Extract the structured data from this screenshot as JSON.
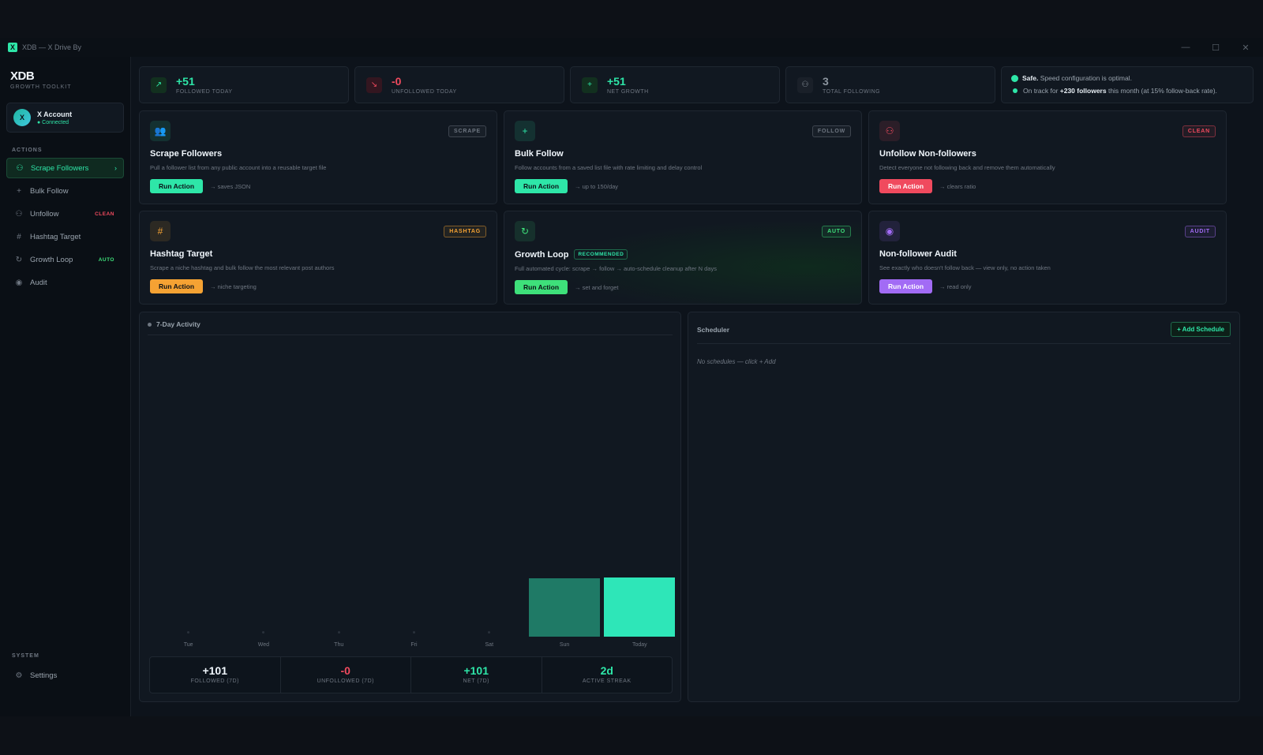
{
  "window": {
    "title": "XDB — X Drive By"
  },
  "brand": {
    "name": "XDB",
    "subtitle": "GROWTH TOOLKIT"
  },
  "account": {
    "avatar": "X",
    "name": "X Account",
    "status": "● Connected"
  },
  "sidebar": {
    "actions_label": "ACTIONS",
    "items": [
      {
        "label": "Scrape Followers",
        "icon": "users-icon",
        "tag": ""
      },
      {
        "label": "Bulk Follow",
        "icon": "plus-icon",
        "tag": ""
      },
      {
        "label": "Unfollow",
        "icon": "user-minus-icon",
        "tag": "CLEAN"
      },
      {
        "label": "Hashtag Target",
        "icon": "hash-icon",
        "tag": ""
      },
      {
        "label": "Growth Loop",
        "icon": "refresh-icon",
        "tag": "AUTO"
      },
      {
        "label": "Audit",
        "icon": "eye-icon",
        "tag": ""
      }
    ],
    "system_label": "SYSTEM",
    "settings_label": "Settings"
  },
  "stats": [
    {
      "value": "+51",
      "label": "FOLLOWED TODAY",
      "color": "#2ee6a8"
    },
    {
      "value": "-0",
      "label": "UNFOLLOWED TODAY",
      "color": "#f04a5e"
    },
    {
      "value": "+51",
      "label": "NET GROWTH",
      "color": "#2ee6a8"
    },
    {
      "value": "3",
      "label": "TOTAL FOLLOWING",
      "color": "#8b949e"
    }
  ],
  "status": {
    "line1_bold": "Safe.",
    "line1_rest": " Speed configuration is optimal.",
    "line2_pre": "On track for ",
    "line2_bold": "+230 followers",
    "line2_post": " this month (at 15% follow-back rate)."
  },
  "cards": [
    {
      "title": "Scrape Followers",
      "badge": "SCRAPE",
      "desc": "Pull a follower list from any public account into a reusable target file",
      "button": "Run Action",
      "note": "→ saves JSON",
      "accent": "#2ee6a8",
      "icon": "users-icon",
      "glyph": "👥"
    },
    {
      "title": "Bulk Follow",
      "badge": "FOLLOW",
      "desc": "Follow accounts from a saved list file with rate limiting and delay control",
      "button": "Run Action",
      "note": "→ up to 150/day",
      "accent": "#2ee6a8",
      "icon": "plus-icon",
      "glyph": "+"
    },
    {
      "title": "Unfollow Non-followers",
      "badge": "CLEAN",
      "desc": "Detect everyone not following back and remove them automatically",
      "button": "Run Action",
      "note": "→ clears ratio",
      "accent": "#f04a5e",
      "icon": "user-minus-icon",
      "glyph": "⚇"
    },
    {
      "title": "Hashtag Target",
      "badge": "HASHTAG",
      "desc": "Scrape a niche hashtag and bulk follow the most relevant post authors",
      "button": "Run Action",
      "note": "→ niche targeting",
      "accent": "#f5a233",
      "icon": "hash-icon",
      "glyph": "#"
    },
    {
      "title": "Growth Loop",
      "badge": "AUTO",
      "recommended": "RECOMMENDED",
      "desc": "Full automated cycle: scrape → follow → auto-schedule cleanup after N days",
      "button": "Run Action",
      "note": "→ set and forget",
      "accent": "#3ee07a",
      "icon": "refresh-icon",
      "glyph": "↻"
    },
    {
      "title": "Non-follower Audit",
      "badge": "AUDIT",
      "desc": "See exactly who doesn't follow back — view only, no action taken",
      "button": "Run Action",
      "note": "→ read only",
      "accent": "#a26bf5",
      "icon": "eye-icon",
      "glyph": "◉"
    }
  ],
  "activity": {
    "title": "7-Day Activity",
    "summary": [
      {
        "value": "+101",
        "label": "FOLLOWED (7D)",
        "color": "#f0f6fc"
      },
      {
        "value": "-0",
        "label": "UNFOLLOWED (7D)",
        "color": "#f04a5e"
      },
      {
        "value": "+101",
        "label": "NET (7D)",
        "color": "#2ee6a8"
      },
      {
        "value": "2d",
        "label": "ACTIVE STREAK",
        "color": "#2ee6a8"
      }
    ]
  },
  "chart_data": {
    "type": "bar",
    "categories": [
      "Tue",
      "Wed",
      "Thu",
      "Fri",
      "Sat",
      "Sun",
      "Today"
    ],
    "values": [
      0,
      0,
      0,
      0,
      0,
      50,
      51
    ],
    "ylim": [
      0,
      51
    ],
    "grid": false,
    "colors": {
      "past": "#1f7a66",
      "today": "#2ee6b8"
    }
  },
  "scheduler": {
    "title": "Scheduler",
    "add_label": "+ Add Schedule",
    "empty": "No schedules — click + Add"
  }
}
